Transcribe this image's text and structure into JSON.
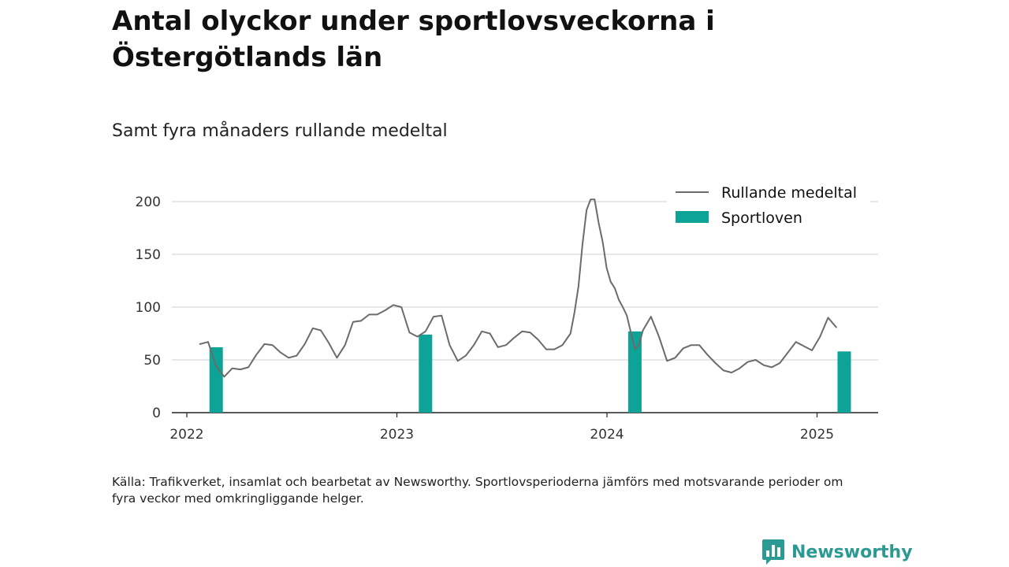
{
  "title": "Antal olyckor under sportlovsveckorna i Östergötlands län",
  "subtitle": "Samt fyra månaders rullande medeltal",
  "source": "Källa: Trafikverket, insamlat och bearbetat av Newsworthy. Sportlovsperioderna jämförs med motsvarande perioder om fyra veckor med omkringliggande helger.",
  "brand": {
    "name": "Newsworthy",
    "icon": "bar-chart-logo-icon"
  },
  "colors": {
    "line": "#6b6b6b",
    "bar": "#0ea397",
    "grid": "#d9d9d9",
    "axis": "#222222",
    "brand": "#2a9a93"
  },
  "chart_data": {
    "type": "line",
    "ylim": [
      0,
      200
    ],
    "yticks": [
      0,
      50,
      100,
      150,
      200
    ],
    "xticks": [
      "2022",
      "2023",
      "2024",
      "2025"
    ],
    "grid": true,
    "legend_position": "top-right",
    "legend": [
      {
        "label": "Rullande medeltal",
        "kind": "line"
      },
      {
        "label": "Sportloven",
        "kind": "bar"
      }
    ],
    "bars": {
      "name": "Sportloven",
      "x": [
        "2022-02-21",
        "2023-02-20",
        "2024-02-19",
        "2025-02-17"
      ],
      "values": [
        62,
        74,
        77,
        58
      ]
    },
    "series": [
      {
        "name": "Rullande medeltal",
        "x": [
          "2022-01-24",
          "2022-02-07",
          "2022-02-21",
          "2022-03-07",
          "2022-03-21",
          "2022-04-04",
          "2022-04-18",
          "2022-05-02",
          "2022-05-16",
          "2022-05-30",
          "2022-06-13",
          "2022-06-27",
          "2022-07-11",
          "2022-07-25",
          "2022-08-08",
          "2022-08-22",
          "2022-09-05",
          "2022-09-19",
          "2022-10-03",
          "2022-10-17",
          "2022-10-31",
          "2022-11-14",
          "2022-11-28",
          "2022-12-12",
          "2022-12-26",
          "2023-01-09",
          "2023-01-23",
          "2023-02-06",
          "2023-02-20",
          "2023-03-06",
          "2023-03-20",
          "2023-04-03",
          "2023-04-17",
          "2023-05-01",
          "2023-05-15",
          "2023-05-29",
          "2023-06-12",
          "2023-06-26",
          "2023-07-10",
          "2023-07-24",
          "2023-08-07",
          "2023-08-21",
          "2023-09-04",
          "2023-09-18",
          "2023-10-02",
          "2023-10-16",
          "2023-10-30",
          "2023-11-06",
          "2023-11-13",
          "2023-11-20",
          "2023-11-27",
          "2023-12-04",
          "2023-12-11",
          "2023-12-18",
          "2023-12-25",
          "2024-01-01",
          "2024-01-08",
          "2024-01-15",
          "2024-01-22",
          "2024-01-29",
          "2024-02-05",
          "2024-02-12",
          "2024-02-19",
          "2024-02-26",
          "2024-03-04",
          "2024-03-18",
          "2024-04-01",
          "2024-04-15",
          "2024-04-29",
          "2024-05-13",
          "2024-05-27",
          "2024-06-10",
          "2024-06-24",
          "2024-07-08",
          "2024-07-22",
          "2024-08-05",
          "2024-08-19",
          "2024-09-02",
          "2024-09-16",
          "2024-09-30",
          "2024-10-14",
          "2024-10-28",
          "2024-11-11",
          "2024-11-25",
          "2024-12-09",
          "2024-12-23",
          "2025-01-06",
          "2025-01-20",
          "2025-02-03"
        ],
        "values": [
          65,
          67,
          44,
          34,
          42,
          41,
          43,
          55,
          65,
          64,
          57,
          52,
          54,
          65,
          80,
          78,
          66,
          52,
          64,
          86,
          87,
          93,
          93,
          97,
          102,
          100,
          76,
          72,
          77,
          91,
          92,
          64,
          49,
          54,
          64,
          77,
          75,
          62,
          64,
          71,
          77,
          76,
          69,
          60,
          60,
          64,
          75,
          95,
          120,
          160,
          192,
          202,
          202,
          180,
          162,
          137,
          124,
          118,
          107,
          100,
          92,
          76,
          60,
          64,
          78,
          91,
          72,
          49,
          52,
          61,
          64,
          64,
          55,
          47,
          40,
          38,
          42,
          48,
          50,
          45,
          43,
          47,
          57,
          67,
          63,
          59,
          72,
          90,
          81
        ]
      }
    ]
  }
}
